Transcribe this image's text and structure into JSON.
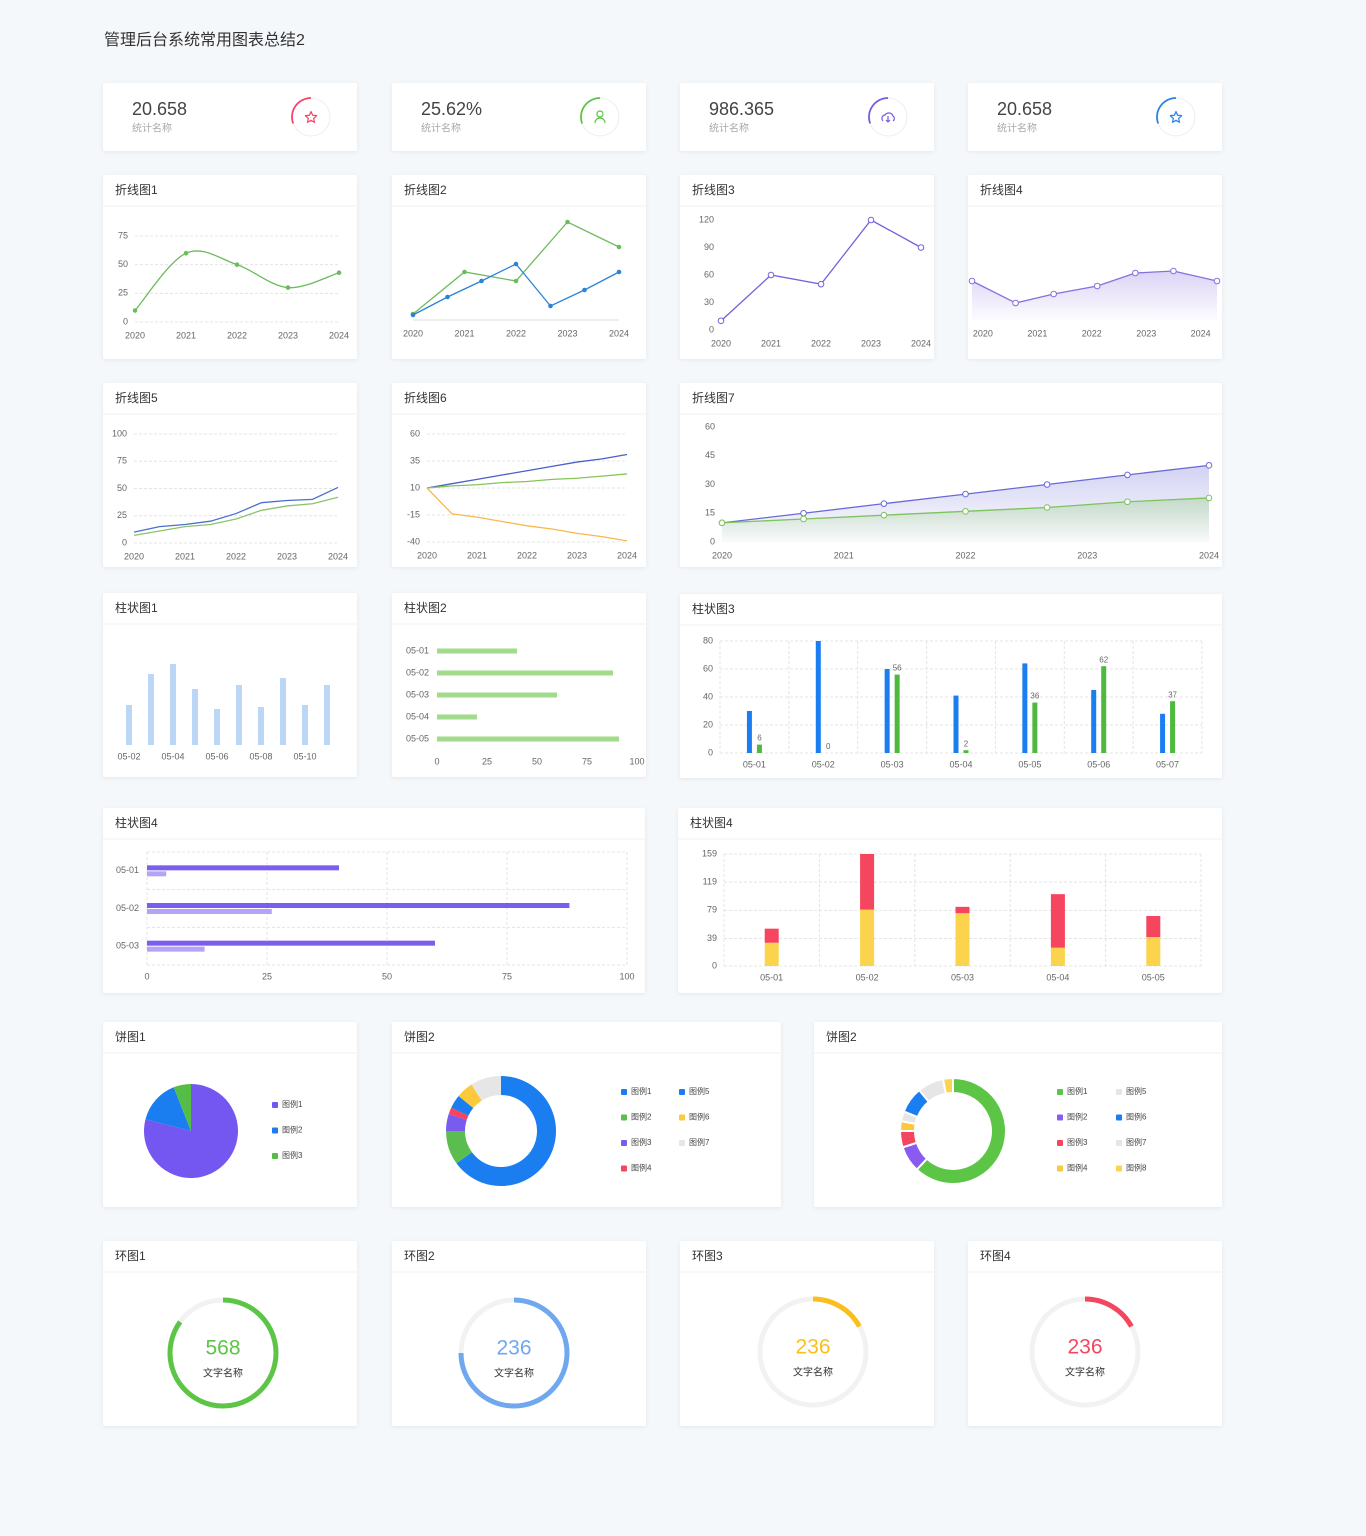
{
  "title": "管理后台系统常用图表总结2",
  "stats": [
    {
      "value": 20.658,
      "label": "统计名称",
      "color": "#f5456b"
    },
    {
      "value": "25.62%",
      "label": "统计名称",
      "color": "#5cc545"
    },
    {
      "value": 986.365,
      "label": "统计名称",
      "color": "#7a5bdc"
    },
    {
      "value": 20.658,
      "label": "统计名称",
      "color": "#2a83e8"
    }
  ],
  "chart_data": [
    {
      "type": "line",
      "title": "折线图1",
      "x": [
        2020,
        2021,
        2022,
        2023,
        2024
      ],
      "xlim": [
        2020,
        2024
      ],
      "xticks": [
        2020,
        2021,
        2022,
        2023,
        2024
      ],
      "ylim": [
        0,
        75
      ],
      "yticks": [
        0,
        25,
        50,
        75
      ],
      "grid": true,
      "smooth": true,
      "markers": "dot",
      "series": [
        {
          "color": "#6cbb5c",
          "values": [
            10,
            60,
            50,
            30,
            43
          ]
        }
      ]
    },
    {
      "type": "line",
      "title": "折线图2",
      "xlim": [
        2020,
        2024
      ],
      "xticks": [
        2020,
        2021,
        2022,
        2023,
        2024
      ],
      "ylim": [
        0,
        100
      ],
      "baseline": true,
      "markers": "dot",
      "series": [
        {
          "color": "#6cbb5c",
          "x": [
            2020,
            2021,
            2022,
            2023,
            2024
          ],
          "values": [
            6,
            48,
            39,
            98,
            73
          ]
        },
        {
          "color": "#2a83d8",
          "x": [
            2020,
            2020.67,
            2021.33,
            2022,
            2022.67,
            2023.33,
            2024
          ],
          "values": [
            5,
            23,
            39,
            56,
            14,
            30,
            48
          ]
        }
      ]
    },
    {
      "type": "line",
      "title": "折线图3",
      "x": [
        2020,
        2021,
        2022,
        2023,
        2024
      ],
      "xlim": [
        2020,
        2024
      ],
      "xticks": [
        2020,
        2021,
        2022,
        2023,
        2024
      ],
      "ylim": [
        0,
        120
      ],
      "yticks": [
        0,
        30,
        60,
        90,
        120
      ],
      "markers": "ring",
      "series": [
        {
          "color": "#7a5fdc",
          "values": [
            10,
            60,
            50,
            120,
            90
          ]
        }
      ]
    },
    {
      "type": "line",
      "title": "折线图4",
      "xlim": [
        2019.8,
        2024.3
      ],
      "xticks": [
        2020,
        2021,
        2022,
        2023,
        2024
      ],
      "ylim": [
        0,
        100
      ],
      "area": true,
      "markers": "ring",
      "series": [
        {
          "color": "#8a6ee0",
          "x": [
            2019.8,
            2020.6,
            2021.3,
            2022.1,
            2022.8,
            2023.5,
            2024.3
          ],
          "values": [
            39,
            17,
            26,
            34,
            47,
            49,
            39
          ]
        }
      ]
    },
    {
      "type": "line",
      "title": "折线图5",
      "x": [
        2020,
        2020.5,
        2021,
        2021.5,
        2022,
        2022.5,
        2023,
        2023.5,
        2024
      ],
      "xlim": [
        2020,
        2024
      ],
      "xticks": [
        2020,
        2021,
        2022,
        2023,
        2024
      ],
      "ylim": [
        0,
        100
      ],
      "yticks": [
        0,
        25,
        50,
        75,
        100
      ],
      "grid": true,
      "series": [
        {
          "color": "#4a6fd0",
          "values": [
            10,
            15,
            17,
            20,
            27,
            37,
            39,
            40,
            51
          ]
        },
        {
          "color": "#8bc36a",
          "values": [
            7,
            11,
            15,
            17,
            22,
            30,
            34,
            36,
            42
          ]
        }
      ]
    },
    {
      "type": "line",
      "title": "折线图6",
      "x": [
        2020,
        2020.5,
        2021,
        2021.5,
        2022,
        2022.5,
        2023,
        2023.5,
        2024
      ],
      "xlim": [
        2020,
        2024
      ],
      "xticks": [
        2020,
        2021,
        2022,
        2023,
        2024
      ],
      "ylim": [
        -40,
        60
      ],
      "yticks": [
        60,
        35,
        10,
        -15,
        -40
      ],
      "grid": true,
      "series": [
        {
          "color": "#4a5fc8",
          "values": [
            10,
            14,
            18,
            22,
            26,
            30,
            34,
            37,
            41
          ]
        },
        {
          "color": "#86c45a",
          "values": [
            10,
            12,
            13,
            15,
            16,
            18,
            19,
            21,
            23
          ]
        },
        {
          "color": "#f8b84e",
          "values": [
            10,
            -14,
            -17,
            -21,
            -25,
            -28,
            -32,
            -35,
            -39
          ]
        }
      ]
    },
    {
      "type": "line",
      "title": "折线图7",
      "x": [
        2020,
        2020.67,
        2021.33,
        2022,
        2022.67,
        2023.33,
        2024
      ],
      "xlim": [
        2020,
        2024
      ],
      "xticks": [
        2020,
        2021,
        2022,
        2023,
        2024
      ],
      "ylim": [
        0,
        60
      ],
      "yticks": [
        0,
        15,
        30,
        45,
        60
      ],
      "area": true,
      "markers": "ring",
      "series": [
        {
          "color": "#6a6ad8",
          "values": [
            10,
            15,
            20,
            25,
            30,
            35,
            40
          ]
        },
        {
          "color": "#7cc45c",
          "values": [
            10,
            12,
            14,
            16,
            18,
            21,
            23
          ]
        }
      ]
    },
    {
      "type": "bar",
      "title": "柱状图1",
      "categories": [
        "05-02",
        null,
        "05-04",
        null,
        "05-06",
        null,
        "05-08",
        null,
        "05-10",
        null
      ],
      "ylim": [
        0,
        100
      ],
      "series": [
        {
          "color": "#bcd6f6",
          "values": [
            40,
            71,
            81,
            56,
            36,
            60,
            38,
            67,
            40,
            60
          ]
        }
      ]
    },
    {
      "type": "barh",
      "title": "柱状图2",
      "categories": [
        "05-01",
        "05-02",
        "05-03",
        "05-04",
        "05-05"
      ],
      "xlim": [
        0,
        100
      ],
      "xticks": [
        0,
        25,
        50,
        75,
        100
      ],
      "series": [
        {
          "color": "#a3db8c",
          "values": [
            40,
            88,
            60,
            20,
            91
          ]
        }
      ]
    },
    {
      "type": "bar",
      "title": "柱状图3",
      "categories": [
        "05-01",
        "05-02",
        "05-03",
        "05-04",
        "05-05",
        "05-06",
        "05-07"
      ],
      "ylim": [
        0,
        80
      ],
      "yticks": [
        0,
        20,
        40,
        60,
        80
      ],
      "grid": true,
      "series": [
        {
          "color": "#1a7ef0",
          "values": [
            30,
            80,
            60,
            41,
            64,
            45,
            28
          ]
        },
        {
          "color": "#4fb83e",
          "values": [
            6,
            0,
            56,
            2,
            36,
            62,
            37
          ],
          "labels": true
        }
      ]
    },
    {
      "type": "barh",
      "title": "柱状图4",
      "categories": [
        "05-01",
        "05-02",
        "05-03"
      ],
      "xlim": [
        0,
        100
      ],
      "xticks": [
        0,
        25,
        50,
        75,
        100
      ],
      "grid": true,
      "series": [
        {
          "color": "#7b5ef0",
          "values": [
            40,
            88,
            60
          ]
        },
        {
          "color": "#b4a4f6",
          "values": [
            4,
            26,
            12
          ]
        }
      ]
    },
    {
      "type": "bar",
      "title": "柱状图4",
      "categories": [
        "05-01",
        "05-02",
        "05-03",
        "05-04",
        "05-05"
      ],
      "ylim": [
        0,
        159
      ],
      "yticks": [
        0,
        39,
        79,
        119,
        159
      ],
      "grid": true,
      "stacked": true,
      "series": [
        {
          "color": "#fcd34d",
          "values": [
            33,
            80,
            75,
            26,
            41
          ]
        },
        {
          "color": "#f5455f",
          "values": [
            20,
            79,
            9,
            76,
            30
          ]
        }
      ]
    },
    {
      "type": "pie",
      "title": "饼图1",
      "labels": [
        "图例1",
        "图例2",
        "图例3"
      ],
      "values": [
        79,
        15,
        6
      ],
      "colors": [
        "#7457f0",
        "#1a7ef0",
        "#55bd45"
      ]
    },
    {
      "type": "pie",
      "title": "饼图2",
      "donut": true,
      "labels": [
        "图例1",
        "图例2",
        "图例3",
        "图例4",
        "图例5",
        "图例6",
        "图例7"
      ],
      "values": [
        65,
        10,
        5,
        2,
        4,
        5,
        9
      ],
      "colors": [
        "#1a7ef0",
        "#5bbd4f",
        "#7a5bf0",
        "#f5455f",
        "#1a7ef0",
        "#fcc93d",
        "#e6e6e6"
      ]
    },
    {
      "type": "pie",
      "title": "饼图2",
      "donut": true,
      "gap": true,
      "labels": [
        "图例1",
        "图例2",
        "图例3",
        "图例4",
        "图例5",
        "图例6",
        "图例7",
        "图例8"
      ],
      "values": [
        62,
        8,
        5,
        3,
        3,
        8,
        8,
        3
      ],
      "colors": [
        "#5cc545",
        "#8a5bf0",
        "#f5455f",
        "#fcc93d",
        "#e6e6e6",
        "#1a7ef0",
        "#e6e6e6",
        "#fcd34d"
      ]
    },
    {
      "type": "gauge",
      "title": "环图1",
      "value": 568,
      "label": "文字名称",
      "percent": 85,
      "color": "#5cc545"
    },
    {
      "type": "gauge",
      "title": "环图2",
      "value": 236,
      "label": "文字名称",
      "percent": 75,
      "color": "#6fa8ee"
    },
    {
      "type": "gauge",
      "title": "环图3",
      "value": 236,
      "label": "文字名称",
      "percent": 17,
      "color": "#fbbf1c"
    },
    {
      "type": "gauge",
      "title": "环图4",
      "value": 236,
      "label": "文字名称",
      "percent": 17,
      "color": "#f5455f"
    }
  ]
}
